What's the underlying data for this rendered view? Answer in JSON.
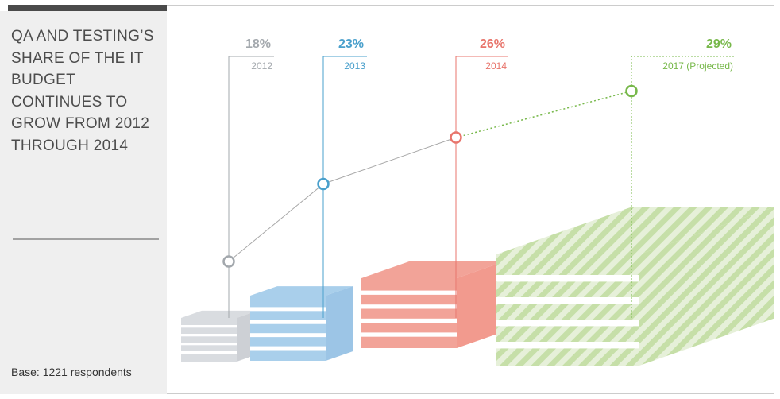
{
  "chart_data": {
    "type": "line",
    "title": "QA AND TESTING’S SHARE OF THE IT BUDGET CONTINUES TO GROW FROM 2012 THROUGH 2014",
    "note": "Base: 1221 respondents",
    "categories": [
      "2012",
      "2013",
      "2014",
      "2017 (Projected)"
    ],
    "values": [
      18,
      23,
      26,
      29
    ],
    "value_labels": [
      "18%",
      "23%",
      "26%",
      "29%"
    ],
    "colors": [
      "#a3a8ad",
      "#4aa0cc",
      "#e8756c",
      "#77b84a"
    ],
    "line_color": "#a8a8a8"
  }
}
